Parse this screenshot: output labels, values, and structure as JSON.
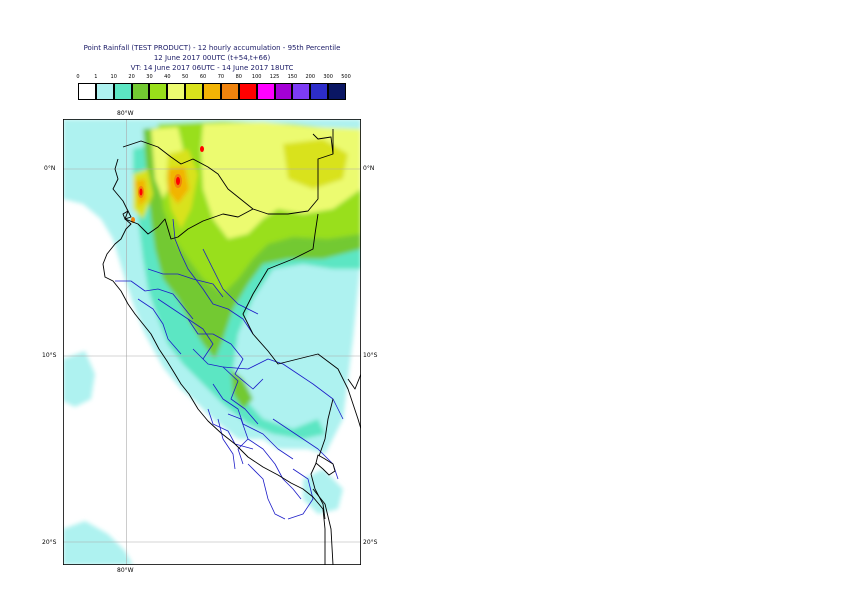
{
  "header": {
    "title": "Point Rainfall (TEST PRODUCT) - 12 hourly accumulation - 95th Percentile",
    "run": "12 June 2017 00UTC (t+54,t+66)",
    "valid": "VT: 14 June 2017 06UTC - 14 June 2017 18UTC"
  },
  "legend": {
    "thresholds": [
      "0",
      "1",
      "10",
      "20",
      "30",
      "40",
      "50",
      "60",
      "70",
      "80",
      "100",
      "125",
      "150",
      "200",
      "300",
      "500"
    ],
    "colors": [
      "#ffffff",
      "#aef2f0",
      "#5ce6c3",
      "#73c932",
      "#99df1a",
      "#ecfb70",
      "#d9e21c",
      "#f2b405",
      "#f0830d",
      "#ff0000",
      "#ff00ff",
      "#a400d6",
      "#7d3cf5",
      "#2d2dca",
      "#0a1663"
    ]
  },
  "axes": {
    "lon_top": "80°W",
    "lon_bottom": "80°W",
    "lat_left": [
      "0°N",
      "10°S",
      "20°S"
    ],
    "lat_right": [
      "0°N",
      "10°S",
      "20°S"
    ]
  },
  "map_colors": {
    "sea_background": "#ffffff",
    "graticule": "#a9a9a9",
    "country_border": "#000000",
    "region_border": "#1c1cc8"
  }
}
